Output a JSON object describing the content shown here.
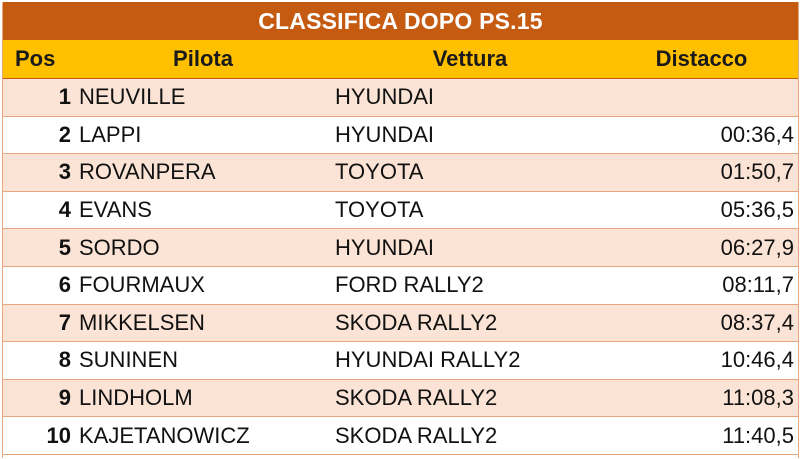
{
  "title": "CLASSIFICA DOPO PS.15",
  "headers": {
    "pos": "Pos",
    "pilota": "Pilota",
    "vettura": "Vettura",
    "distacco": "Distacco"
  },
  "rows": [
    {
      "pos": "1",
      "pilota": "NEUVILLE",
      "vettura": "HYUNDAI",
      "distacco": ""
    },
    {
      "pos": "2",
      "pilota": "LAPPI",
      "vettura": "HYUNDAI",
      "distacco": "00:36,4"
    },
    {
      "pos": "3",
      "pilota": "ROVANPERA",
      "vettura": "TOYOTA",
      "distacco": "01:50,7"
    },
    {
      "pos": "4",
      "pilota": "EVANS",
      "vettura": "TOYOTA",
      "distacco": "05:36,5"
    },
    {
      "pos": "5",
      "pilota": "SORDO",
      "vettura": "HYUNDAI",
      "distacco": "06:27,9"
    },
    {
      "pos": "6",
      "pilota": "FOURMAUX",
      "vettura": "FORD RALLY2",
      "distacco": "08:11,7"
    },
    {
      "pos": "7",
      "pilota": "MIKKELSEN",
      "vettura": "SKODA RALLY2",
      "distacco": "08:37,4"
    },
    {
      "pos": "8",
      "pilota": "SUNINEN",
      "vettura": "HYUNDAI RALLY2",
      "distacco": "10:46,4"
    },
    {
      "pos": "9",
      "pilota": "LINDHOLM",
      "vettura": "SKODA RALLY2",
      "distacco": "11:08,3"
    },
    {
      "pos": "10",
      "pilota": "KAJETANOWICZ",
      "vettura": "SKODA RALLY2",
      "distacco": "11:40,5"
    }
  ],
  "colors": {
    "title_bg": "#c55a11",
    "header_bg": "#ffc000",
    "band_odd": "#fbe4d5",
    "band_even": "#ffffff"
  }
}
